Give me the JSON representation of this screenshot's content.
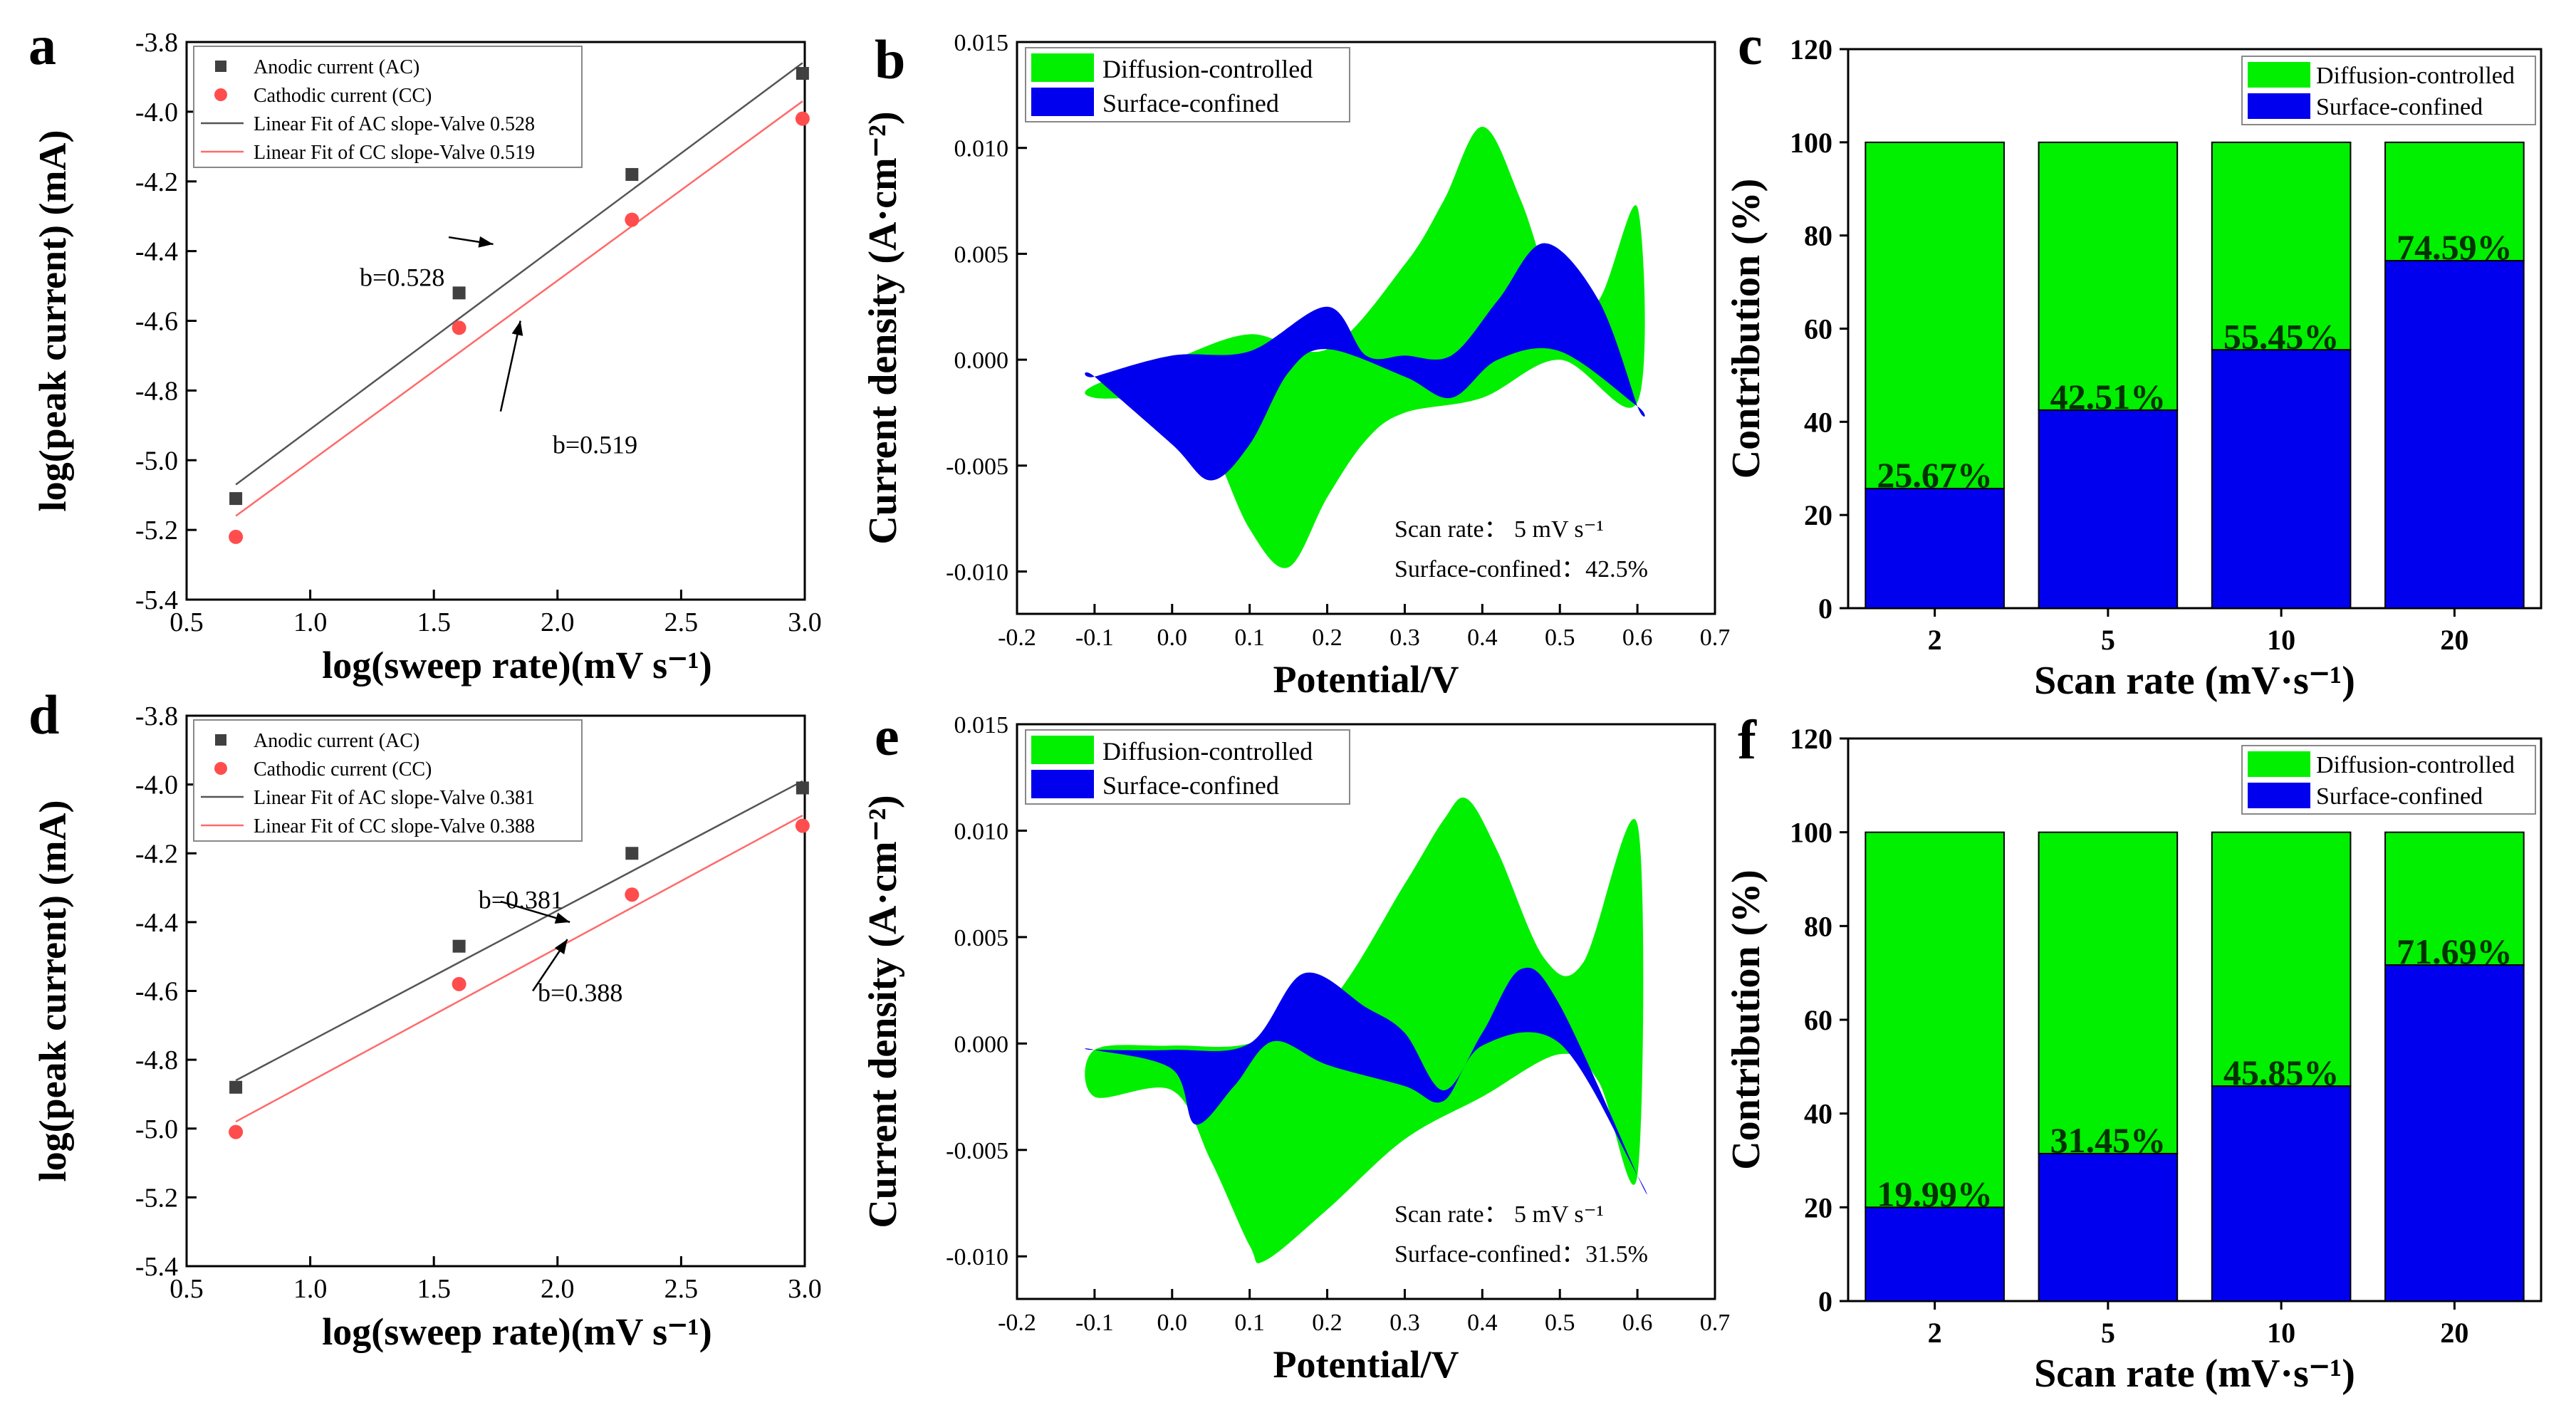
{
  "colors": {
    "ac_marker": "#404040",
    "cc_marker": "#ff4d4d",
    "ac_line": "#555555",
    "cc_line": "#ff6a6a",
    "diffusion": "#00f000",
    "surface": "#0000ee",
    "axis": "#000000"
  },
  "chart_data": [
    {
      "id": "a",
      "type": "scatter",
      "letter": "a",
      "xlabel": "log(sweep rate)(mV s⁻¹)",
      "ylabel": "log(peak current) (mA)",
      "xlim": [
        0.5,
        3.0
      ],
      "ylim": [
        -5.4,
        -3.8
      ],
      "xticks": [
        "0.5",
        "1.0",
        "1.5",
        "2.0",
        "2.5",
        "3.0"
      ],
      "yticks": [
        "-5.4",
        "-5.2",
        "-5.0",
        "-4.8",
        "-4.6",
        "-4.4",
        "-4.2",
        "-4.0",
        "-3.8"
      ],
      "series": [
        {
          "name": "Anodic current (AC)",
          "x": [
            0.699,
            1.602,
            2.301,
            2.991
          ],
          "y": [
            -5.11,
            -4.52,
            -4.18,
            -3.89
          ]
        },
        {
          "name": "Cathodic current (CC)",
          "x": [
            0.699,
            1.602,
            2.301,
            2.991
          ],
          "y": [
            -5.22,
            -4.62,
            -4.31,
            -4.02
          ]
        }
      ],
      "fits": [
        {
          "name": "Linear Fit of AC slope-Valve 0.528",
          "x": [
            0.699,
            2.991
          ],
          "y": [
            -5.07,
            -3.86
          ]
        },
        {
          "name": "Linear Fit of CC slope-Valve 0.519",
          "x": [
            0.699,
            2.991
          ],
          "y": [
            -5.16,
            -3.97
          ]
        }
      ],
      "annotations": [
        {
          "text": "b=0.528",
          "x": 1.2,
          "y": -4.5,
          "ax": 1.56,
          "ay": -4.36,
          "hx": 1.74,
          "hy": -4.38
        },
        {
          "text": "b=0.519",
          "x": 1.98,
          "y": -4.98,
          "ax": 1.77,
          "ay": -4.86,
          "hx": 1.85,
          "hy": -4.6
        }
      ]
    },
    {
      "id": "b",
      "type": "area",
      "letter": "b",
      "xlabel": "Potential/V",
      "ylabel": "Current density (A·cm⁻²)",
      "xlim": [
        -0.2,
        0.7
      ],
      "ylim": [
        -0.012,
        0.015
      ],
      "xticks": [
        "-0.2",
        "-0.1",
        "0.0",
        "0.1",
        "0.2",
        "0.3",
        "0.4",
        "0.5",
        "0.6",
        "0.7"
      ],
      "yticks": [
        "-0.010",
        "-0.005",
        "0.000",
        "0.005",
        "0.010",
        "0.015"
      ],
      "legend": [
        "Diffusion-controlled",
        "Surface-confined"
      ],
      "scan_rate": "Scan rate：  5 mV s⁻¹",
      "surface_label": "Surface-confined：42.5%",
      "total_upper": [
        [
          -0.1,
          -0.0012
        ],
        [
          0.0,
          0.0
        ],
        [
          0.1,
          0.0012
        ],
        [
          0.2,
          0.0005
        ],
        [
          0.3,
          0.0045
        ],
        [
          0.35,
          0.0075
        ],
        [
          0.4,
          0.011
        ],
        [
          0.45,
          0.0075
        ],
        [
          0.5,
          0.0025
        ],
        [
          0.55,
          0.0028
        ],
        [
          0.6,
          0.0072
        ]
      ],
      "total_lower": [
        [
          -0.1,
          -0.0018
        ],
        [
          0.0,
          -0.002
        ],
        [
          0.05,
          -0.004
        ],
        [
          0.1,
          -0.008
        ],
        [
          0.15,
          -0.0098
        ],
        [
          0.2,
          -0.0065
        ],
        [
          0.25,
          -0.0038
        ],
        [
          0.3,
          -0.0025
        ],
        [
          0.4,
          -0.0018
        ],
        [
          0.5,
          0.0
        ],
        [
          0.6,
          -0.002
        ]
      ],
      "surface_upper": [
        [
          -0.1,
          -0.0008
        ],
        [
          0.0,
          0.0002
        ],
        [
          0.1,
          0.0004
        ],
        [
          0.2,
          0.0025
        ],
        [
          0.25,
          0.0002
        ],
        [
          0.3,
          0.0002
        ],
        [
          0.36,
          0.0002
        ],
        [
          0.42,
          0.0028
        ],
        [
          0.48,
          0.0055
        ],
        [
          0.55,
          0.0028
        ],
        [
          0.6,
          -0.0022
        ]
      ],
      "surface_lower": [
        [
          -0.1,
          -0.0008
        ],
        [
          0.0,
          -0.004
        ],
        [
          0.05,
          -0.0057
        ],
        [
          0.1,
          -0.004
        ],
        [
          0.15,
          -0.0006
        ],
        [
          0.2,
          0.0005
        ],
        [
          0.3,
          -0.0008
        ],
        [
          0.36,
          -0.0018
        ],
        [
          0.42,
          0.0
        ],
        [
          0.5,
          0.0004
        ],
        [
          0.6,
          -0.0022
        ]
      ]
    },
    {
      "id": "c",
      "type": "bar",
      "letter": "c",
      "xlabel": "Scan rate (mV·s⁻¹)",
      "ylabel": "Contribution (%)",
      "ylim": [
        0,
        120
      ],
      "yticks": [
        "0",
        "20",
        "40",
        "60",
        "80",
        "100",
        "120"
      ],
      "categories": [
        "2",
        "5",
        "10",
        "20"
      ],
      "series": [
        {
          "name": "Surface-confined",
          "values": [
            25.67,
            42.51,
            55.45,
            74.59
          ]
        },
        {
          "name": "Diffusion-controlled",
          "values": [
            74.33,
            57.49,
            44.55,
            25.41
          ]
        }
      ],
      "labels": [
        "25.67%",
        "42.51%",
        "55.45%",
        "74.59%"
      ],
      "legend": [
        "Diffusion-controlled",
        "Surface-confined"
      ]
    },
    {
      "id": "d",
      "type": "scatter",
      "letter": "d",
      "xlabel": "log(sweep rate)(mV s⁻¹)",
      "ylabel": "log(peak current) (mA)",
      "xlim": [
        0.5,
        3.0
      ],
      "ylim": [
        -5.4,
        -3.8
      ],
      "xticks": [
        "0.5",
        "1.0",
        "1.5",
        "2.0",
        "2.5",
        "3.0"
      ],
      "yticks": [
        "-5.4",
        "-5.2",
        "-5.0",
        "-4.8",
        "-4.6",
        "-4.4",
        "-4.2",
        "-4.0",
        "-3.8"
      ],
      "series": [
        {
          "name": "Anodic current (AC)",
          "x": [
            0.699,
            1.602,
            2.301,
            2.991
          ],
          "y": [
            -4.88,
            -4.47,
            -4.2,
            -4.01
          ]
        },
        {
          "name": "Cathodic current (CC)",
          "x": [
            0.699,
            1.602,
            2.301,
            2.991
          ],
          "y": [
            -5.01,
            -4.58,
            -4.32,
            -4.12
          ]
        }
      ],
      "fits": [
        {
          "name": "Linear Fit of AC slope-Valve 0.381",
          "x": [
            0.699,
            2.991
          ],
          "y": [
            -4.86,
            -3.99
          ]
        },
        {
          "name": "Linear Fit of CC slope-Valve 0.388",
          "x": [
            0.699,
            2.991
          ],
          "y": [
            -4.98,
            -4.09
          ]
        }
      ],
      "annotations": [
        {
          "text": "b=0.381",
          "x": 1.68,
          "y": -4.36,
          "ax": 1.77,
          "ay": -4.34,
          "hx": 2.05,
          "hy": -4.4
        },
        {
          "text": "b=0.388",
          "x": 1.92,
          "y": -4.63,
          "ax": 1.9,
          "ay": -4.6,
          "hx": 2.04,
          "hy": -4.45
        }
      ]
    },
    {
      "id": "e",
      "type": "area",
      "letter": "e",
      "xlabel": "Potential/V",
      "ylabel": "Current density (A·cm⁻²)",
      "xlim": [
        -0.2,
        0.7
      ],
      "ylim": [
        -0.012,
        0.015
      ],
      "xticks": [
        "-0.2",
        "-0.1",
        "0.0",
        "0.1",
        "0.2",
        "0.3",
        "0.4",
        "0.5",
        "0.6",
        "0.7"
      ],
      "yticks": [
        "-0.010",
        "-0.005",
        "0.000",
        "0.005",
        "0.010",
        "0.015"
      ],
      "legend": [
        "Diffusion-controlled",
        "Surface-confined"
      ],
      "scan_rate": "Scan rate：  5 mV s⁻¹",
      "surface_label": "Surface-confined：31.5%",
      "total_upper": [
        [
          -0.1,
          -0.0003
        ],
        [
          0.0,
          -0.0001
        ],
        [
          0.1,
          0.0
        ],
        [
          0.2,
          0.0018
        ],
        [
          0.3,
          0.0075
        ],
        [
          0.35,
          0.0105
        ],
        [
          0.38,
          0.0115
        ],
        [
          0.42,
          0.009
        ],
        [
          0.48,
          0.004
        ],
        [
          0.53,
          0.0038
        ],
        [
          0.6,
          0.0103
        ]
      ],
      "total_lower": [
        [
          -0.1,
          -0.0025
        ],
        [
          0.0,
          -0.0022
        ],
        [
          0.05,
          -0.0055
        ],
        [
          0.1,
          -0.0095
        ],
        [
          0.12,
          -0.0102
        ],
        [
          0.2,
          -0.0078
        ],
        [
          0.3,
          -0.0045
        ],
        [
          0.4,
          -0.0025
        ],
        [
          0.5,
          -0.0005
        ],
        [
          0.55,
          -0.0018
        ],
        [
          0.6,
          -0.0062
        ]
      ],
      "surface_upper": [
        [
          -0.1,
          -0.0003
        ],
        [
          0.0,
          -0.0003
        ],
        [
          0.1,
          0.0
        ],
        [
          0.17,
          0.0033
        ],
        [
          0.25,
          0.0017
        ],
        [
          0.3,
          0.0005
        ],
        [
          0.35,
          -0.0022
        ],
        [
          0.4,
          0.0005
        ],
        [
          0.45,
          0.0035
        ],
        [
          0.5,
          0.0018
        ],
        [
          0.6,
          -0.0062
        ]
      ],
      "surface_lower": [
        [
          -0.1,
          -0.0003
        ],
        [
          0.0,
          -0.0012
        ],
        [
          0.03,
          -0.0038
        ],
        [
          0.08,
          -0.002
        ],
        [
          0.13,
          0.0001
        ],
        [
          0.2,
          -0.001
        ],
        [
          0.3,
          -0.002
        ],
        [
          0.35,
          -0.0027
        ],
        [
          0.4,
          -0.0001
        ],
        [
          0.5,
          0.0
        ],
        [
          0.6,
          -0.0062
        ]
      ]
    },
    {
      "id": "f",
      "type": "bar",
      "letter": "f",
      "xlabel": "Scan rate (mV·s⁻¹)",
      "ylabel": "Contribution (%)",
      "ylim": [
        0,
        120
      ],
      "yticks": [
        "0",
        "20",
        "40",
        "60",
        "80",
        "100",
        "120"
      ],
      "categories": [
        "2",
        "5",
        "10",
        "20"
      ],
      "series": [
        {
          "name": "Surface-confined",
          "values": [
            19.99,
            31.45,
            45.85,
            71.69
          ]
        },
        {
          "name": "Diffusion-controlled",
          "values": [
            80.01,
            68.55,
            54.15,
            28.31
          ]
        }
      ],
      "labels": [
        "19.99%",
        "31.45%",
        "45.85%",
        "71.69%"
      ],
      "legend": [
        "Diffusion-controlled",
        "Surface-confined"
      ]
    }
  ]
}
